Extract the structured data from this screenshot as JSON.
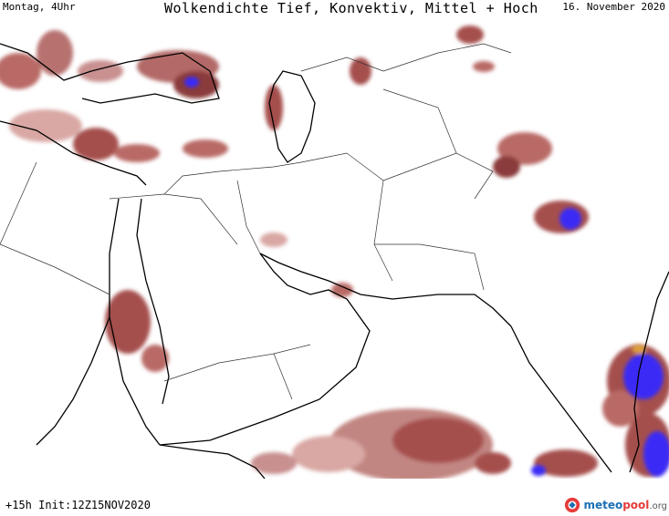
{
  "header": {
    "left": "Montag, 4Uhr",
    "center": "Wolkendichte  Tief, Konvektiv, Mittel + Hoch",
    "right": "16. November 2020"
  },
  "footer": {
    "run_info": "+15h Init:12Z15NOV2020",
    "logo_meteo": "meteo",
    "logo_pool": "pool",
    "logo_org": ".org"
  },
  "colors": {
    "cloud_low": "#d9a8a4",
    "cloud_mid": "#a5504d",
    "cloud_high": "#7a2b2d",
    "cloud_convective": "#3b2cf5",
    "cloud_max": "#f2c232",
    "land_bg": "#ffffff",
    "coast": "#000000",
    "border": "#333333"
  },
  "legend_icons": [
    "logo-icon"
  ]
}
